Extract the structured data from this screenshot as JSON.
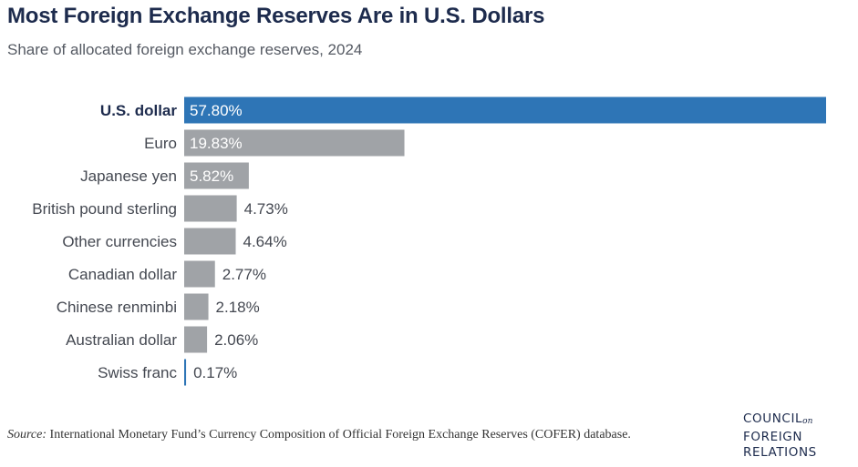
{
  "header": {
    "title": "Most Foreign Exchange Reserves Are in U.S. Dollars",
    "subtitle": "Share of allocated foreign exchange reserves, 2024"
  },
  "chart_data": {
    "type": "bar",
    "orientation": "horizontal",
    "categories": [
      "U.S. dollar",
      "Euro",
      "Japanese yen",
      "British pound sterling",
      "Other currencies",
      "Canadian dollar",
      "Chinese renminbi",
      "Australian dollar",
      "Swiss franc"
    ],
    "values": [
      57.8,
      19.83,
      5.82,
      4.73,
      4.64,
      2.77,
      2.18,
      2.06,
      0.17
    ],
    "value_labels": [
      "57.80%",
      "19.83%",
      "5.82%",
      "4.73%",
      "4.64%",
      "2.77%",
      "2.18%",
      "2.06%",
      "0.17%"
    ],
    "unit": "%",
    "xlim": [
      0,
      57.8
    ],
    "highlight_category": "U.S. dollar",
    "colors": {
      "highlight": "#2e75b6",
      "default": "#a0a3a7",
      "baseline": "#2e75b6"
    },
    "grid": false,
    "legend": "none"
  },
  "footer": {
    "source_label": "Source:",
    "source_text": "International Monetary Fund’s Currency Composition of Official Foreign Exchange Reserves (COFER) database.",
    "logo": {
      "line1": "COUNCIL",
      "line1_small": "on",
      "line2": "FOREIGN",
      "line3": "RELATIONS"
    }
  }
}
